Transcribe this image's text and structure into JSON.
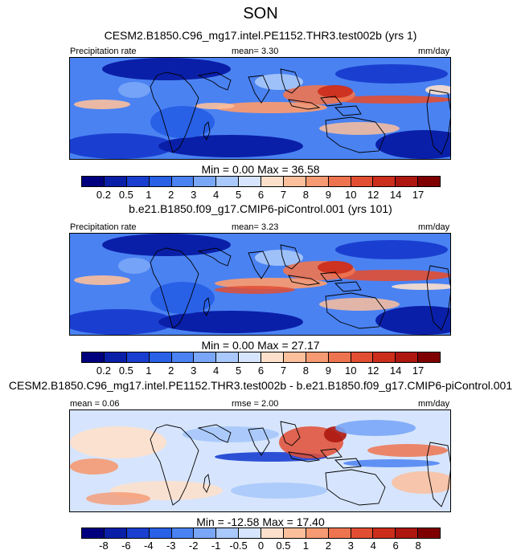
{
  "figure": {
    "title": "SON",
    "colors": {
      "precip_levels": [
        "#00007f",
        "#0a1fa8",
        "#1a3fd0",
        "#2860e6",
        "#4a82f2",
        "#7aa6f7",
        "#a9c8fb",
        "#d6e5fd",
        "#fde0cc",
        "#fbbf9c",
        "#f59a72",
        "#ee7450",
        "#e24e32",
        "#cc2e1c",
        "#ad1710",
        "#7f0000"
      ],
      "diff_levels": [
        "#00007f",
        "#0a1fa8",
        "#1a3fd0",
        "#2860e6",
        "#4a82f2",
        "#7aa6f7",
        "#a9c8fb",
        "#d6e5fd",
        "#fde0cc",
        "#fbbf9c",
        "#f59a72",
        "#ee7450",
        "#e24e32",
        "#cc2e1c",
        "#ad1710",
        "#7f0000"
      ]
    }
  },
  "panels": [
    {
      "subtitle": "CESM2.B1850.C96_mg17.intel.PE1152.THR3.test002b (yrs 1)",
      "left_label": "Precipitation rate",
      "center_label": "mean=  3.30",
      "right_label": "mm/day",
      "stats": "Min =   0.00 Max =  36.58"
    },
    {
      "subtitle": "b.e21.B1850.f09_g17.CMIP6-piControl.001 (yrs 101)",
      "left_label": "Precipitation rate",
      "center_label": "mean=  3.23",
      "right_label": "mm/day",
      "stats": "Min =   0.00 Max =  27.17"
    },
    {
      "subtitle": "CESM2.B1850.C96_mg17.intel.PE1152.THR3.test002b - b.e21.B1850.f09_g17.CMIP6-piControl.001",
      "left_label": "mean =  0.06",
      "center_label": "rmse =  2.00",
      "right_label": "mm/day",
      "stats": "Min = -12.58 Max =  17.40"
    }
  ],
  "chart_data": [
    {
      "type": "heatmap",
      "title": "CESM2.B1850.C96_mg17.intel.PE1152.THR3.test002b (yrs 1)",
      "variable": "Precipitation rate",
      "units": "mm/day",
      "mean": 3.3,
      "min": 0.0,
      "max": 36.58,
      "colorbar_levels": [
        0.2,
        0.5,
        1,
        2,
        3,
        4,
        5,
        6,
        7,
        8,
        9,
        10,
        12,
        14,
        17
      ],
      "colorbar_tick_labels": [
        "0.2",
        "0.5",
        "1",
        "2",
        "3",
        "4",
        "5",
        "6",
        "7",
        "8",
        "9",
        "10",
        "12",
        "14",
        "17"
      ]
    },
    {
      "type": "heatmap",
      "title": "b.e21.B1850.f09_g17.CMIP6-piControl.001 (yrs 101)",
      "variable": "Precipitation rate",
      "units": "mm/day",
      "mean": 3.23,
      "min": 0.0,
      "max": 27.17,
      "colorbar_levels": [
        0.2,
        0.5,
        1,
        2,
        3,
        4,
        5,
        6,
        7,
        8,
        9,
        10,
        12,
        14,
        17
      ],
      "colorbar_tick_labels": [
        "0.2",
        "0.5",
        "1",
        "2",
        "3",
        "4",
        "5",
        "6",
        "7",
        "8",
        "9",
        "10",
        "12",
        "14",
        "17"
      ]
    },
    {
      "type": "heatmap",
      "title": "CESM2.B1850.C96_mg17.intel.PE1152.THR3.test002b - b.e21.B1850.f09_g17.CMIP6-piControl.001",
      "units": "mm/day",
      "mean": 0.06,
      "rmse": 2.0,
      "min": -12.58,
      "max": 17.4,
      "colorbar_levels": [
        -8,
        -6,
        -4,
        -3,
        -2,
        -1,
        -0.5,
        0,
        0.5,
        1,
        2,
        3,
        4,
        6,
        8
      ],
      "colorbar_tick_labels": [
        "-8",
        "-6",
        "-4",
        "-3",
        "-2",
        "-1",
        "-0.5",
        "0",
        "0.5",
        "1",
        "2",
        "3",
        "4",
        "6",
        "8"
      ]
    }
  ]
}
